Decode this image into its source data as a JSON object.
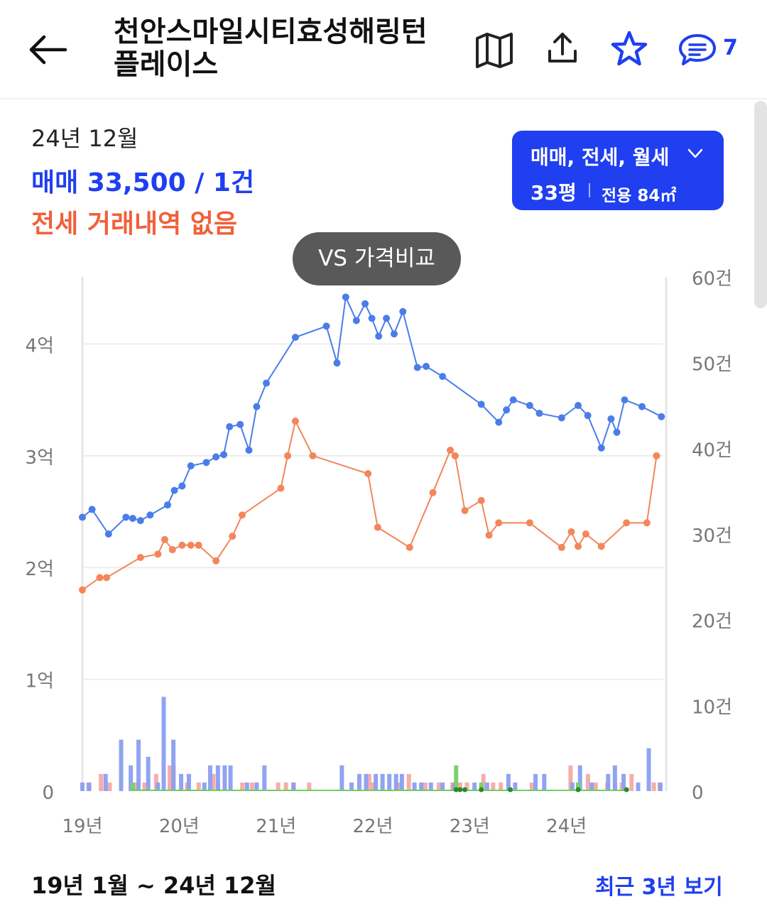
{
  "header": {
    "title": "천안스마일시티효성해링턴 플레이스",
    "comment_count": "7",
    "icons": [
      "back-arrow-icon",
      "map-icon",
      "share-icon",
      "star-icon",
      "comment-icon"
    ]
  },
  "summary": {
    "date": "24년 12월",
    "sale": "매매 33,500 / 1건",
    "jeonse": "전세 거래내역 없음"
  },
  "filter": {
    "types": "매매, 전세, 월세",
    "size": "33평",
    "area": "전용 84㎡"
  },
  "compare_button": "VS 가격비교",
  "chart_data": {
    "type": "line",
    "x_ticks": [
      "19년",
      "20년",
      "21년",
      "22년",
      "23년",
      "24년"
    ],
    "y_left_ticks": [
      "0",
      "1억",
      "2억",
      "3억",
      "4억"
    ],
    "y_left_range": [
      0,
      4.6
    ],
    "y_right_ticks": [
      "0",
      "10건",
      "20건",
      "30건",
      "40건",
      "50건",
      "60건"
    ],
    "y_right_range": [
      0,
      60
    ],
    "series": [
      {
        "color": "#4a7de8",
        "points": [
          [
            2019.0,
            2.45
          ],
          [
            2019.1,
            2.52
          ],
          [
            2019.27,
            2.3
          ],
          [
            2019.45,
            2.45
          ],
          [
            2019.52,
            2.44
          ],
          [
            2019.6,
            2.42
          ],
          [
            2019.7,
            2.47
          ],
          [
            2019.88,
            2.56
          ],
          [
            2019.95,
            2.69
          ],
          [
            2020.03,
            2.73
          ],
          [
            2020.12,
            2.91
          ],
          [
            2020.28,
            2.94
          ],
          [
            2020.38,
            2.99
          ],
          [
            2020.46,
            3.01
          ],
          [
            2020.52,
            3.26
          ],
          [
            2020.63,
            3.28
          ],
          [
            2020.72,
            3.05
          ],
          [
            2020.8,
            3.44
          ],
          [
            2020.9,
            3.65
          ],
          [
            2021.2,
            4.06
          ],
          [
            2021.52,
            4.16
          ],
          [
            2021.63,
            3.83
          ],
          [
            2021.72,
            4.42
          ],
          [
            2021.83,
            4.21
          ],
          [
            2021.92,
            4.36
          ],
          [
            2021.99,
            4.23
          ],
          [
            2022.06,
            4.07
          ],
          [
            2022.14,
            4.23
          ],
          [
            2022.22,
            4.09
          ],
          [
            2022.31,
            4.29
          ],
          [
            2022.46,
            3.79
          ],
          [
            2022.55,
            3.8
          ],
          [
            2022.72,
            3.71
          ],
          [
            2023.12,
            3.46
          ],
          [
            2023.3,
            3.3
          ],
          [
            2023.38,
            3.41
          ],
          [
            2023.45,
            3.5
          ],
          [
            2023.62,
            3.45
          ],
          [
            2023.72,
            3.38
          ],
          [
            2023.95,
            3.34
          ],
          [
            2024.12,
            3.45
          ],
          [
            2024.22,
            3.36
          ],
          [
            2024.36,
            3.07
          ],
          [
            2024.46,
            3.33
          ],
          [
            2024.52,
            3.21
          ],
          [
            2024.6,
            3.5
          ],
          [
            2024.78,
            3.44
          ],
          [
            2024.98,
            3.35
          ]
        ]
      },
      {
        "color": "#f3865a",
        "points": [
          [
            2019.0,
            1.8
          ],
          [
            2019.18,
            1.91
          ],
          [
            2019.25,
            1.91
          ],
          [
            2019.6,
            2.09
          ],
          [
            2019.78,
            2.12
          ],
          [
            2019.85,
            2.25
          ],
          [
            2019.93,
            2.16
          ],
          [
            2020.03,
            2.2
          ],
          [
            2020.12,
            2.2
          ],
          [
            2020.2,
            2.2
          ],
          [
            2020.38,
            2.06
          ],
          [
            2020.55,
            2.28
          ],
          [
            2020.65,
            2.47
          ],
          [
            2021.05,
            2.71
          ],
          [
            2021.12,
            3.0
          ],
          [
            2021.2,
            3.31
          ],
          [
            2021.38,
            3.0
          ],
          [
            2021.95,
            2.84
          ],
          [
            2022.05,
            2.36
          ],
          [
            2022.38,
            2.18
          ],
          [
            2022.62,
            2.67
          ],
          [
            2022.8,
            3.05
          ],
          [
            2022.85,
            3.0
          ],
          [
            2022.95,
            2.51
          ],
          [
            2023.12,
            2.6
          ],
          [
            2023.2,
            2.29
          ],
          [
            2023.3,
            2.4
          ],
          [
            2023.62,
            2.4
          ],
          [
            2023.95,
            2.18
          ],
          [
            2024.05,
            2.32
          ],
          [
            2024.12,
            2.19
          ],
          [
            2024.2,
            2.3
          ],
          [
            2024.36,
            2.19
          ],
          [
            2024.62,
            2.4
          ],
          [
            2024.83,
            2.4
          ],
          [
            2024.93,
            3.0
          ]
        ]
      }
    ],
    "volume_bars": {
      "blue": [
        [
          2019.0,
          1
        ],
        [
          2019.07,
          1
        ],
        [
          2019.24,
          2
        ],
        [
          2019.4,
          6
        ],
        [
          2019.5,
          3
        ],
        [
          2019.58,
          6
        ],
        [
          2019.68,
          4
        ],
        [
          2019.78,
          1
        ],
        [
          2019.84,
          11
        ],
        [
          2019.94,
          6
        ],
        [
          2020.02,
          2
        ],
        [
          2020.1,
          2
        ],
        [
          2020.26,
          1
        ],
        [
          2020.32,
          3
        ],
        [
          2020.4,
          3
        ],
        [
          2020.47,
          3
        ],
        [
          2020.53,
          3
        ],
        [
          2020.7,
          1
        ],
        [
          2020.8,
          1
        ],
        [
          2020.88,
          3
        ],
        [
          2021.18,
          1
        ],
        [
          2021.68,
          3
        ],
        [
          2021.78,
          1
        ],
        [
          2021.86,
          2
        ],
        [
          2021.93,
          2
        ],
        [
          2022.03,
          2
        ],
        [
          2022.1,
          2
        ],
        [
          2022.17,
          2
        ],
        [
          2022.24,
          2
        ],
        [
          2022.3,
          2
        ],
        [
          2022.43,
          1
        ],
        [
          2022.5,
          1
        ],
        [
          2022.6,
          1
        ],
        [
          2022.72,
          1
        ],
        [
          2022.84,
          1
        ],
        [
          2023.05,
          1
        ],
        [
          2023.18,
          1
        ],
        [
          2023.4,
          2
        ],
        [
          2023.47,
          1
        ],
        [
          2023.68,
          2
        ],
        [
          2023.77,
          2
        ],
        [
          2024.06,
          1
        ],
        [
          2024.14,
          3
        ],
        [
          2024.26,
          1
        ],
        [
          2024.43,
          2
        ],
        [
          2024.5,
          3
        ],
        [
          2024.59,
          2
        ],
        [
          2024.74,
          1
        ],
        [
          2024.85,
          5
        ],
        [
          2024.97,
          1
        ]
      ],
      "red": [
        [
          2019.04,
          1
        ],
        [
          2019.17,
          2
        ],
        [
          2019.26,
          1
        ],
        [
          2019.54,
          1
        ],
        [
          2019.62,
          1
        ],
        [
          2019.74,
          2
        ],
        [
          2019.88,
          3
        ],
        [
          2019.92,
          3
        ],
        [
          2020.06,
          1
        ],
        [
          2020.18,
          1
        ],
        [
          2020.33,
          2
        ],
        [
          2020.38,
          1
        ],
        [
          2020.63,
          1
        ],
        [
          2020.73,
          1
        ],
        [
          2021.0,
          1
        ],
        [
          2021.08,
          1
        ],
        [
          2021.16,
          1
        ],
        [
          2021.32,
          1
        ],
        [
          2021.94,
          2
        ],
        [
          2021.98,
          1
        ],
        [
          2022.24,
          1
        ],
        [
          2022.35,
          2
        ],
        [
          2022.52,
          1
        ],
        [
          2022.66,
          1
        ],
        [
          2022.8,
          1
        ],
        [
          2022.88,
          1
        ],
        [
          2022.95,
          1
        ],
        [
          2023.12,
          2
        ],
        [
          2023.22,
          1
        ],
        [
          2023.3,
          1
        ],
        [
          2023.62,
          1
        ],
        [
          2024.02,
          3
        ],
        [
          2024.1,
          1
        ],
        [
          2024.2,
          2
        ],
        [
          2024.28,
          1
        ],
        [
          2024.4,
          1
        ],
        [
          2024.48,
          1
        ],
        [
          2024.55,
          1
        ],
        [
          2024.65,
          2
        ],
        [
          2024.88,
          1
        ],
        [
          2024.94,
          1
        ]
      ],
      "green": [
        [
          2019.52,
          1
        ],
        [
          2022.86,
          3
        ],
        [
          2023.12,
          1
        ],
        [
          2024.12,
          1
        ]
      ]
    }
  },
  "period": "19년 1월 ~ 24년 12월",
  "recent_link": "최근 3년 보기"
}
